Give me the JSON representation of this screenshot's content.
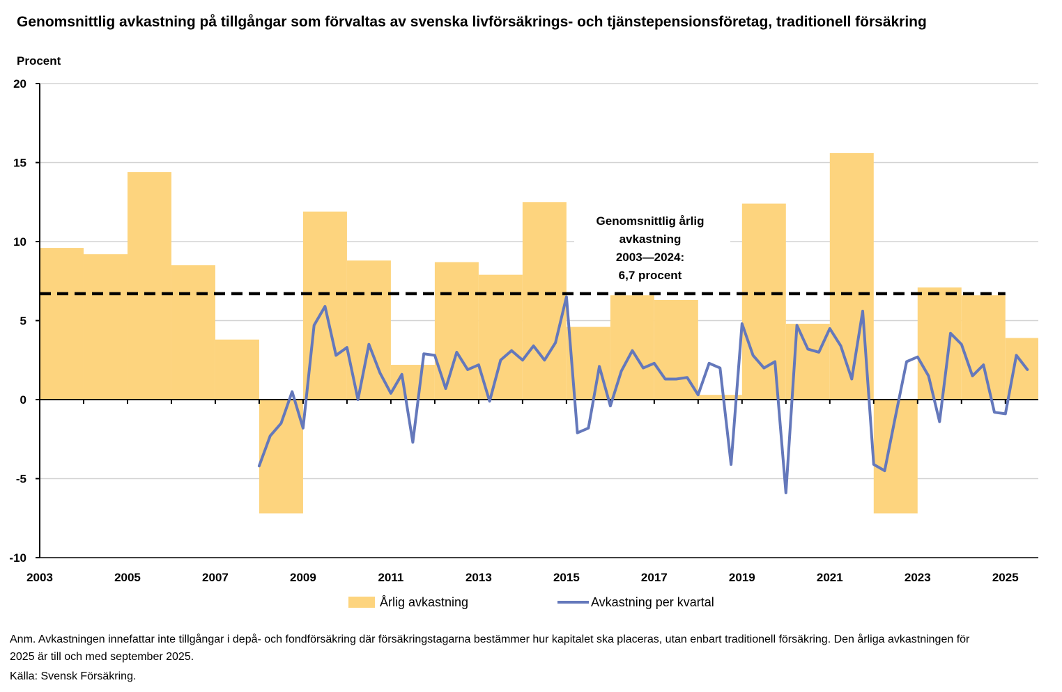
{
  "chart_data": {
    "type": "bar+line",
    "title": "Genomsnittlig avkastning på tillgångar som förvaltas av svenska livförsäkrings- och tjänstepensionsföretag, traditionell försäkring",
    "ylabel": "Procent",
    "ylim": [
      -10,
      20
    ],
    "yticks": [
      "-10",
      "-5",
      "0",
      "5",
      "10",
      "15",
      "20"
    ],
    "xticks": [
      "2003",
      "2005",
      "2007",
      "2009",
      "2011",
      "2013",
      "2015",
      "2017",
      "2019",
      "2021",
      "2023",
      "2025"
    ],
    "annual": {
      "name": "Årlig avkastning",
      "color": "#fdd47e",
      "categories": [
        "2003",
        "2004",
        "2005",
        "2006",
        "2007",
        "2008",
        "2009",
        "2010",
        "2011",
        "2012",
        "2013",
        "2014",
        "2015",
        "2016",
        "2017",
        "2018",
        "2019",
        "2020",
        "2021",
        "2022",
        "2023",
        "2024",
        "2025"
      ],
      "values": [
        9.6,
        9.2,
        14.4,
        8.5,
        3.8,
        -7.2,
        11.9,
        8.8,
        2.2,
        8.7,
        7.9,
        12.5,
        4.6,
        6.6,
        6.3,
        0.3,
        12.4,
        4.8,
        15.6,
        -7.2,
        7.1,
        6.6,
        3.9
      ]
    },
    "quarterly": {
      "name": "Avkastning per kvartal",
      "color": "#6478bb",
      "x": [
        2008.0,
        2008.25,
        2008.5,
        2008.75,
        2009.0,
        2009.25,
        2009.5,
        2009.75,
        2010.0,
        2010.25,
        2010.5,
        2010.75,
        2011.0,
        2011.25,
        2011.5,
        2011.75,
        2012.0,
        2012.25,
        2012.5,
        2012.75,
        2013.0,
        2013.25,
        2013.5,
        2013.75,
        2014.0,
        2014.25,
        2014.5,
        2014.75,
        2015.0,
        2015.25,
        2015.5,
        2015.75,
        2016.0,
        2016.25,
        2016.5,
        2016.75,
        2017.0,
        2017.25,
        2017.5,
        2017.75,
        2018.0,
        2018.25,
        2018.5,
        2018.75,
        2019.0,
        2019.25,
        2019.5,
        2019.75,
        2020.0,
        2020.25,
        2020.5,
        2020.75,
        2021.0,
        2021.25,
        2021.5,
        2021.75,
        2022.0,
        2022.25,
        2022.5,
        2022.75,
        2023.0,
        2023.25,
        2023.5,
        2023.75,
        2024.0,
        2024.25,
        2024.5,
        2024.75,
        2025.0,
        2025.25,
        2025.5
      ],
      "values": [
        -4.2,
        -2.3,
        -1.5,
        0.5,
        -1.8,
        4.7,
        5.9,
        2.8,
        3.3,
        0.0,
        3.5,
        1.7,
        0.4,
        1.6,
        -2.7,
        2.9,
        2.8,
        0.7,
        3.0,
        1.9,
        2.2,
        -0.1,
        2.5,
        3.1,
        2.5,
        3.4,
        2.5,
        3.6,
        6.5,
        -2.1,
        -1.8,
        2.1,
        -0.4,
        1.8,
        3.1,
        2.0,
        2.3,
        1.3,
        1.3,
        1.4,
        0.3,
        2.3,
        2.0,
        -4.1,
        4.8,
        2.8,
        2.0,
        2.4,
        -5.9,
        4.7,
        3.2,
        3.0,
        4.5,
        3.4,
        1.3,
        5.6,
        -4.1,
        -4.5,
        -1.0,
        2.4,
        2.7,
        1.5,
        -1.4,
        4.2,
        3.5,
        1.5,
        2.2,
        -0.8,
        -0.9,
        2.8,
        1.9
      ]
    },
    "average": {
      "value": 6.7,
      "from": 2003,
      "to": 2025,
      "label_lines": [
        "Genomsnittlig årlig",
        "avkastning",
        "2003—2024:",
        "6,7 procent"
      ]
    },
    "legend": "bottom-center"
  },
  "note": "Anm. Avkastningen innefattar inte tillgångar i depå- och fondförsäkring där försäkringstagarna bestämmer hur kapitalet ska placeras, utan enbart traditionell försäkring. Den årliga avkastningen för 2025 är till och med september 2025.",
  "source": "Källa: Svensk Försäkring."
}
